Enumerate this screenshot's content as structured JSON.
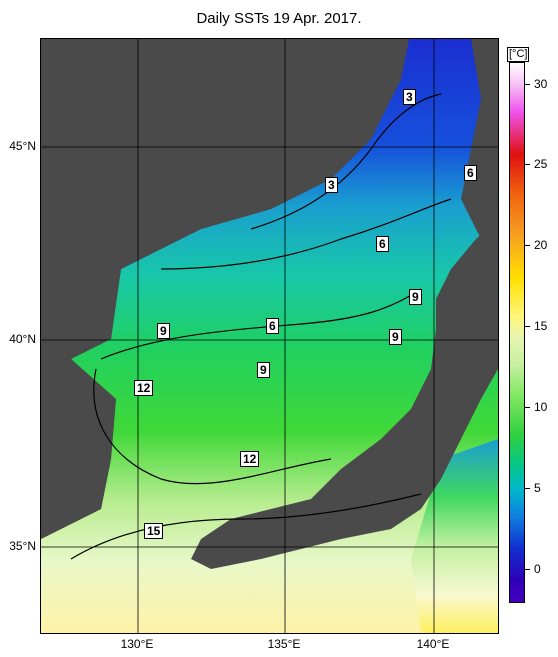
{
  "title": "Daily SSTs 19 Apr. 2017.",
  "latitudes": [
    "45°N",
    "40°N",
    "35°N"
  ],
  "longitudes": [
    "130°E",
    "135°E",
    "140°E"
  ],
  "colorbar": {
    "unit": "[°C]",
    "ticks": [
      "30",
      "25",
      "20",
      "15",
      "10",
      "5",
      "0"
    ],
    "colors": [
      "#ffffff",
      "#ee55ee",
      "#e01010",
      "#f7a020",
      "#ffe000",
      "#c6f0a0",
      "#30d040",
      "#00b8c8",
      "#1030d0",
      "#4400bb"
    ]
  },
  "contour_labels": [
    "3",
    "3",
    "6",
    "6",
    "6",
    "9",
    "9",
    "9",
    "9",
    "12",
    "12",
    "15"
  ]
}
